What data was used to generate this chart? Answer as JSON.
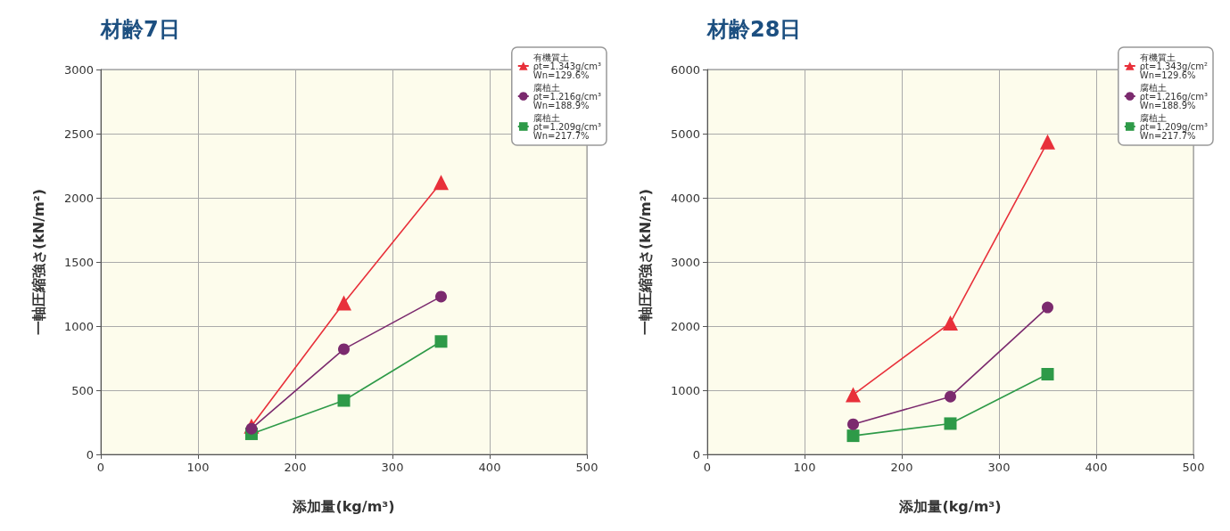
{
  "chart_data": [
    {
      "type": "line",
      "title": "材齢7日",
      "xlabel": "添加量(kg/m³)",
      "ylabel": "一軸圧縮強さ(kN/m²)",
      "x": [
        155,
        250,
        350
      ],
      "xlim": [
        0,
        500
      ],
      "xticks": [
        0,
        100,
        200,
        300,
        400,
        500
      ],
      "ylim": [
        0,
        3000
      ],
      "yticks": [
        0,
        500,
        1000,
        1500,
        2000,
        2500,
        3000
      ],
      "grid": true,
      "legend": "top right",
      "series": [
        {
          "name": "有機質土\nρt=1.343g/cm³\nWn=129.6%",
          "color": "#e8303a",
          "marker": "triangle",
          "values": [
            220,
            1180,
            2120
          ]
        },
        {
          "name": "腐植土\nρt=1.216g/cm³\nWn=188.9%",
          "color": "#7b2a6e",
          "marker": "circle",
          "values": [
            200,
            820,
            1230
          ]
        },
        {
          "name": "腐植土\nρt=1.209g/cm³\nWn=217.7%",
          "color": "#2e9a48",
          "marker": "square",
          "values": [
            160,
            420,
            880
          ]
        }
      ]
    },
    {
      "type": "line",
      "title": "材齢28日",
      "xlabel": "添加量(kg/m³)",
      "ylabel": "一軸圧縮強さ(kN/m²)",
      "x": [
        150,
        250,
        350
      ],
      "xlim": [
        0,
        500
      ],
      "xticks": [
        0,
        100,
        200,
        300,
        400,
        500
      ],
      "ylim": [
        0,
        6000
      ],
      "yticks": [
        0,
        1000,
        2000,
        3000,
        4000,
        5000,
        6000
      ],
      "grid": true,
      "legend": "top right",
      "series": [
        {
          "name": "有機質土\nρt=1.343g/cm²\nWn=129.6%",
          "color": "#e8303a",
          "marker": "triangle",
          "values": [
            930,
            2050,
            4870
          ]
        },
        {
          "name": "腐植土\nρt=1.216g/cm³\nWn=188.9%",
          "color": "#7b2a6e",
          "marker": "circle",
          "values": [
            470,
            900,
            2290
          ]
        },
        {
          "name": "腐植土\nρt=1.209g/cm³\nWn=217.7%",
          "color": "#2e9a48",
          "marker": "square",
          "values": [
            290,
            480,
            1250
          ]
        }
      ]
    }
  ]
}
